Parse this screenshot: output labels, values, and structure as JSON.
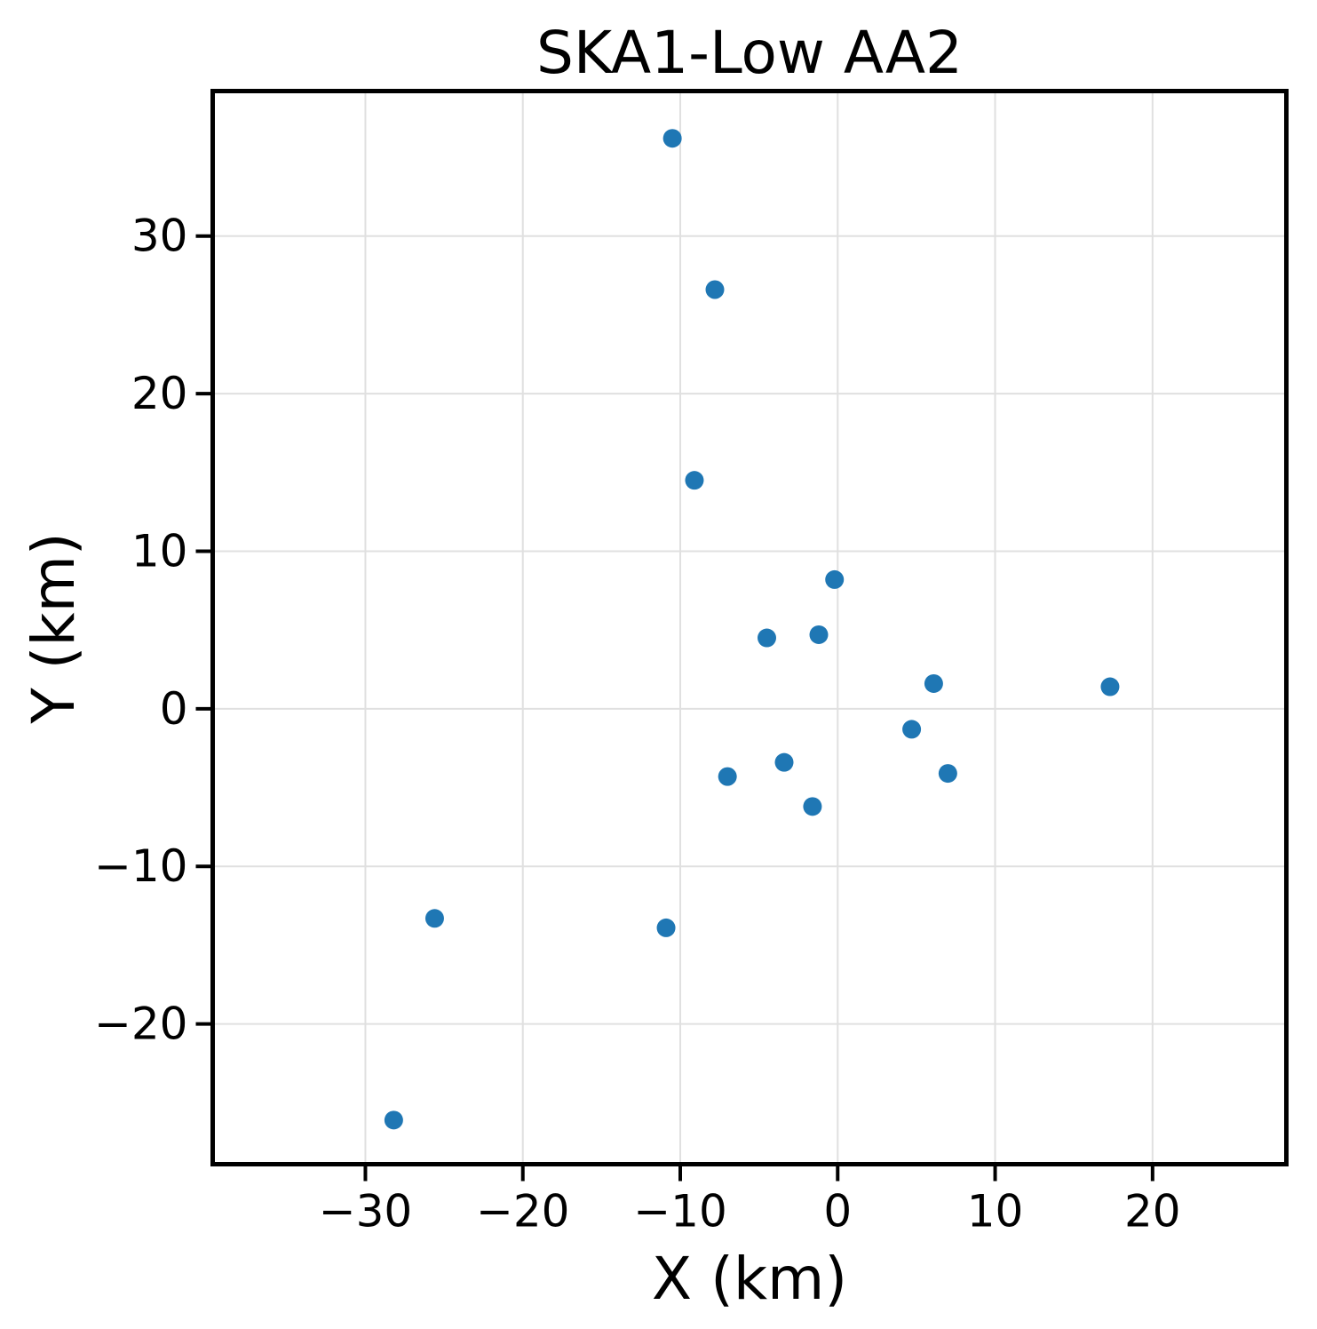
{
  "chart_data": {
    "type": "scatter",
    "title": "SKA1-Low AA2",
    "xlabel": "X (km)",
    "ylabel": "Y (km)",
    "points": [
      [
        -10.5,
        36.2
      ],
      [
        -7.8,
        26.6
      ],
      [
        -9.1,
        14.5
      ],
      [
        -0.2,
        8.2
      ],
      [
        -1.2,
        4.7
      ],
      [
        -4.5,
        4.5
      ],
      [
        6.1,
        1.6
      ],
      [
        17.3,
        1.4
      ],
      [
        4.7,
        -1.3
      ],
      [
        -3.4,
        -3.4
      ],
      [
        7.0,
        -4.1
      ],
      [
        -7.0,
        -4.3
      ],
      [
        -1.6,
        -6.2
      ],
      [
        -25.6,
        -13.3
      ],
      [
        -10.9,
        -13.9
      ],
      [
        -28.2,
        -26.1
      ]
    ],
    "xticks": [
      -30,
      -20,
      -10,
      0,
      10,
      20
    ],
    "yticks": [
      -20,
      -10,
      0,
      10,
      20,
      30
    ],
    "xlim": [
      -39.7,
      28.5
    ],
    "ylim": [
      -28.9,
      39.2
    ],
    "grid": true,
    "legend_position": "none",
    "marker_color": "#1f77b4",
    "grid_color": "#e0e0e0",
    "spine_color": "#000000",
    "background_color": "#ffffff"
  }
}
